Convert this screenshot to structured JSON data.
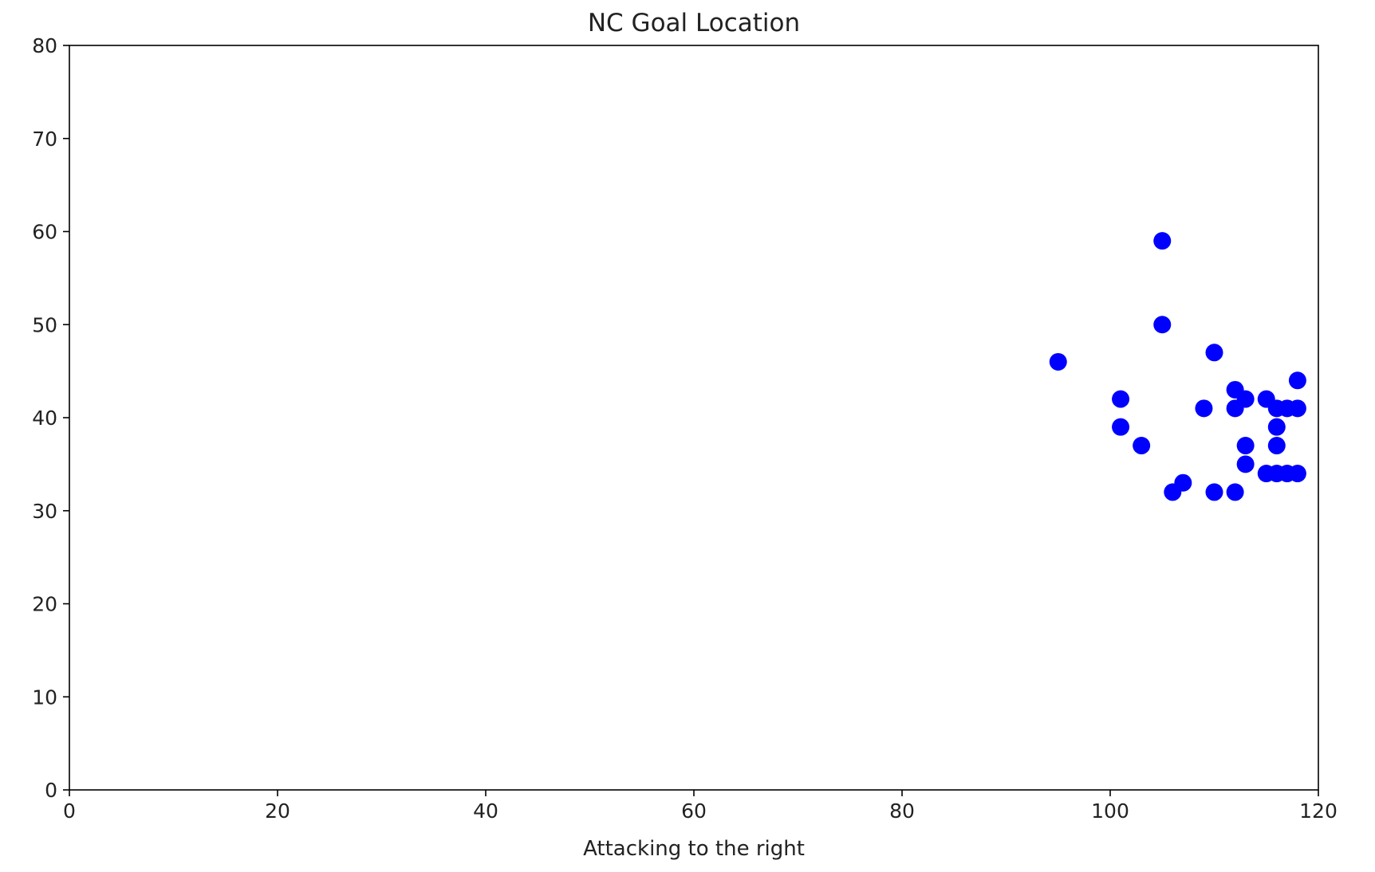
{
  "chart_data": {
    "type": "scatter",
    "title": "NC Goal Location",
    "xlabel": "Attacking to the right",
    "ylabel": "",
    "xlim": [
      0,
      120
    ],
    "ylim": [
      0,
      80
    ],
    "xticks": [
      0,
      20,
      40,
      60,
      80,
      100,
      120
    ],
    "yticks": [
      0,
      10,
      20,
      30,
      40,
      50,
      60,
      70,
      80
    ],
    "grid": false,
    "legend": "none",
    "marker_color": "#0000ff",
    "points": [
      {
        "x": 105,
        "y": 59
      },
      {
        "x": 105,
        "y": 50
      },
      {
        "x": 95,
        "y": 46
      },
      {
        "x": 110,
        "y": 47
      },
      {
        "x": 118,
        "y": 44
      },
      {
        "x": 112,
        "y": 43
      },
      {
        "x": 101,
        "y": 42
      },
      {
        "x": 113,
        "y": 42
      },
      {
        "x": 115,
        "y": 42
      },
      {
        "x": 112,
        "y": 41
      },
      {
        "x": 109,
        "y": 41
      },
      {
        "x": 116,
        "y": 41
      },
      {
        "x": 117,
        "y": 41
      },
      {
        "x": 118,
        "y": 41
      },
      {
        "x": 101,
        "y": 39
      },
      {
        "x": 116,
        "y": 39
      },
      {
        "x": 103,
        "y": 37
      },
      {
        "x": 113,
        "y": 37
      },
      {
        "x": 116,
        "y": 37
      },
      {
        "x": 113,
        "y": 35
      },
      {
        "x": 115,
        "y": 34
      },
      {
        "x": 116,
        "y": 34
      },
      {
        "x": 117,
        "y": 34
      },
      {
        "x": 118,
        "y": 34
      },
      {
        "x": 107,
        "y": 33
      },
      {
        "x": 106,
        "y": 32
      },
      {
        "x": 110,
        "y": 32
      },
      {
        "x": 112,
        "y": 32
      }
    ]
  }
}
